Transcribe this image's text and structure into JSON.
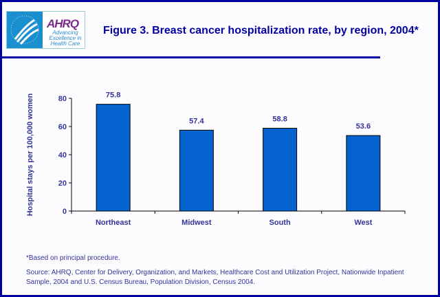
{
  "header": {
    "title": "Figure 3. Breast cancer hospitalization rate, by region, 2004*",
    "logo": {
      "name": "AHRQ",
      "tagline": "Advancing Excellence in Health Care"
    }
  },
  "chart_data": {
    "type": "bar",
    "categories": [
      "Northeast",
      "Midwest",
      "South",
      "West"
    ],
    "values": [
      75.8,
      57.4,
      58.8,
      53.6
    ],
    "data_labels": [
      "75.8",
      "57.4",
      "58.8",
      "53.6"
    ],
    "title": "Figure 3. Breast cancer hospitalization rate, by region, 2004*",
    "xlabel": "",
    "ylabel": "Hospital stays per 100,000 women",
    "ylim": [
      0,
      80
    ],
    "yticks": [
      "0",
      "20",
      "40",
      "60",
      "80"
    ],
    "grid": false,
    "bar_color": "#0563d0",
    "text_color": "#333399"
  },
  "footer": {
    "note": "*Based on principal procedure.",
    "source": "Source: AHRQ, Center for Delivery, Organization, and Markets, Healthcare Cost and Utilization Project, Nationwide Inpatient Sample, 2004 and U.S. Census Bureau, Population Division, Census 2004."
  }
}
